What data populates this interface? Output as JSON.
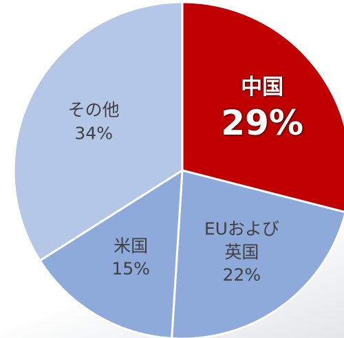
{
  "chart_data": {
    "type": "pie",
    "categories": [
      "中国",
      "EUおよび\n英国",
      "米国",
      "その他"
    ],
    "values": [
      29,
      22,
      15,
      34
    ],
    "value_labels": [
      "29%",
      "22%",
      "15%",
      "34%"
    ],
    "colors": [
      "#c00000",
      "#8eaadb",
      "#8eaadb",
      "#b4c7e7"
    ]
  }
}
